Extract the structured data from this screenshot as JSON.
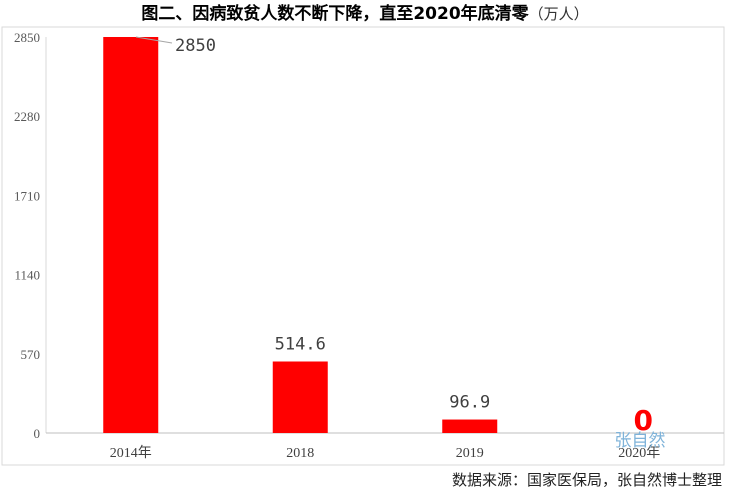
{
  "chart_data": {
    "type": "bar",
    "title": "图二、因病致贫人数不断下降，直至2020年底清零",
    "unit": "（万人）",
    "categories": [
      "2014年",
      "2018",
      "2019",
      "2020年"
    ],
    "values": [
      2850,
      514.6,
      96.9,
      0
    ],
    "data_labels": [
      "2850",
      "514.6",
      "96.9",
      "0"
    ],
    "y_ticks": [
      "0",
      "570",
      "1140",
      "1710",
      "2280",
      "2850"
    ],
    "ylim": [
      0,
      2850
    ],
    "bar_color": "#ff0000",
    "zero_label_color": "#ff0000",
    "grid": false,
    "legend": "none"
  },
  "watermark": "张自然",
  "source": "数据来源：国家医保局，张自然博士整理"
}
